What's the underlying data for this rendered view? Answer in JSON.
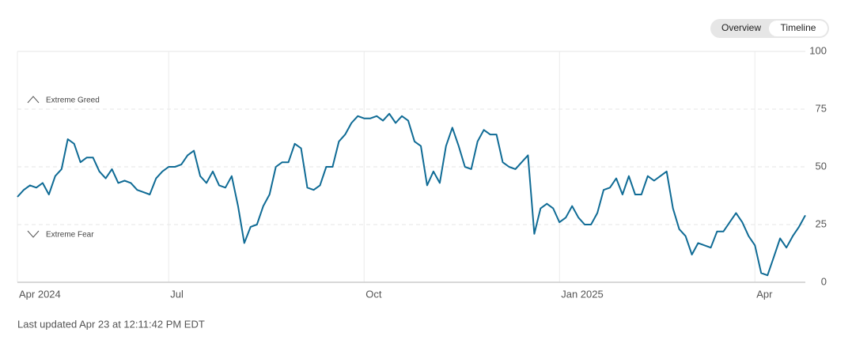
{
  "controls": [
    "Overview",
    "Timeline"
  ],
  "footer": "Last updated Apr 23 at 12:11:42 PM EDT",
  "chart_data": {
    "type": "line",
    "annotations": [
      "Extreme Greed",
      "Extreme Fear"
    ],
    "x": [
      0,
      1,
      2,
      3,
      4,
      5,
      6,
      7,
      8,
      9,
      10,
      11,
      12,
      13,
      14,
      15,
      16,
      17,
      18,
      19,
      20,
      21,
      22,
      23,
      24,
      25,
      26,
      27,
      28,
      29,
      30,
      31,
      32,
      33,
      34,
      35,
      36,
      37,
      38,
      39,
      40,
      41,
      42,
      43,
      44,
      45,
      46,
      47,
      48,
      49,
      50,
      51,
      52,
      53,
      54,
      55,
      56,
      57,
      58,
      59,
      60,
      61,
      62,
      63,
      64,
      65,
      66,
      67,
      68,
      69,
      70,
      71,
      72,
      73,
      74,
      75,
      76,
      77,
      78,
      79,
      80,
      81,
      82,
      83,
      84,
      85,
      86,
      87,
      88,
      89,
      90,
      91,
      92,
      93,
      94,
      95,
      96,
      97,
      98,
      99,
      100,
      101,
      102,
      103,
      104,
      105,
      106,
      107,
      108,
      109,
      110,
      111,
      112,
      113,
      114,
      115,
      116,
      117,
      118,
      119,
      120,
      121,
      122,
      123,
      124,
      125
    ],
    "values": [
      37,
      40,
      42,
      41,
      43,
      38,
      46,
      49,
      62,
      60,
      52,
      54,
      54,
      48,
      45,
      49,
      43,
      44,
      43,
      40,
      39,
      38,
      45,
      48,
      50,
      50,
      51,
      55,
      57,
      46,
      43,
      48,
      42,
      41,
      46,
      33,
      17,
      24,
      25,
      33,
      38,
      50,
      52,
      52,
      60,
      58,
      41,
      40,
      42,
      50,
      50,
      61,
      64,
      69,
      72,
      71,
      71,
      72,
      70,
      73,
      69,
      72,
      70,
      61,
      59,
      42,
      48,
      43,
      59,
      67,
      59,
      50,
      49,
      61,
      66,
      64,
      64,
      52,
      50,
      49,
      52,
      55,
      21,
      32,
      34,
      32,
      26,
      28,
      33,
      28,
      25,
      25,
      30,
      40,
      41,
      45,
      38,
      46,
      38,
      38,
      46,
      44,
      46,
      48,
      32,
      23,
      20,
      12,
      17,
      16,
      15,
      22,
      22,
      26,
      30,
      26,
      20,
      16,
      4,
      3,
      11,
      19,
      15,
      20,
      24,
      29
    ],
    "color": "#0f6b95",
    "xlim": [
      0,
      125
    ],
    "xticks": [
      {
        "value": 0,
        "label": "Apr 2024"
      },
      {
        "value": 24,
        "label": "Jul"
      },
      {
        "value": 55,
        "label": "Oct"
      },
      {
        "value": 86,
        "label": "Jan 2025"
      },
      {
        "value": 117,
        "label": "Apr"
      }
    ],
    "ylim": [
      0,
      100
    ],
    "yticks": [
      0,
      25,
      50,
      75,
      100
    ],
    "grid": true
  }
}
